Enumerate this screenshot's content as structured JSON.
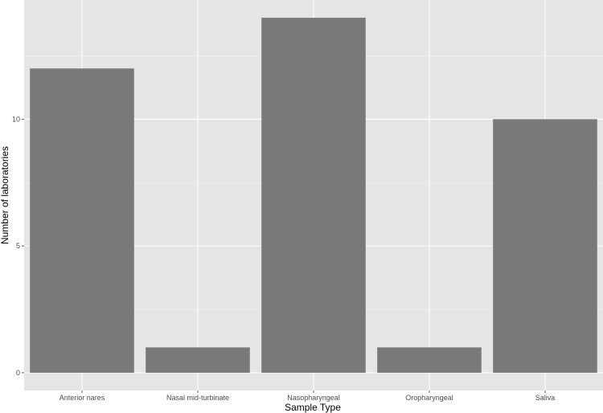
{
  "chart_data": {
    "type": "bar",
    "categories": [
      "Anterior nares",
      "Nasal mid-turbinate",
      "Nasopharyngeal",
      "Oropharyngeal",
      "Saliva"
    ],
    "values": [
      12,
      1,
      14,
      1,
      10
    ],
    "title": "",
    "xlabel": "Sample Type",
    "ylabel": "Number of laboratories",
    "ylim": [
      -0.7,
      14.7
    ],
    "yticks": [
      0,
      5,
      10
    ],
    "grid": true,
    "legend": "none",
    "colors": {
      "bar": "#7a7878",
      "panel_background": "#e5e5e5",
      "grid_major": "#ffffff",
      "grid_minor": "#f2f2f2"
    }
  }
}
